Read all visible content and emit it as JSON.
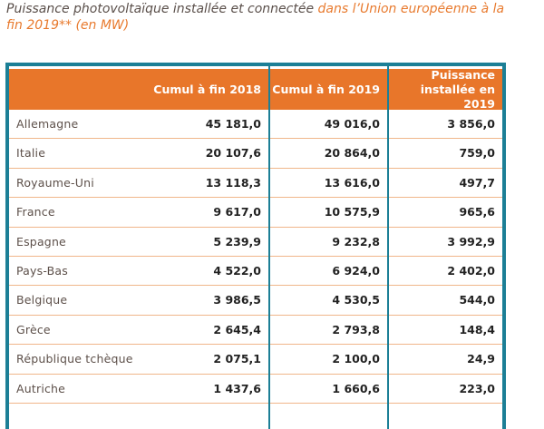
{
  "title": {
    "main": "Puissance photovoltaïque installée et connectée ",
    "accent": "dans l’Union européenne à la fin 2019** (en MW)"
  },
  "colors": {
    "border": "#1c7f96",
    "header": "#e8762a",
    "accent": "#e87a2e"
  },
  "table": {
    "headers": [
      "",
      "Cumul à fin 2018",
      "Cumul à fin 2019",
      "Puissance installée en 2019"
    ],
    "rows": [
      [
        "Allemagne",
        "45 181,0",
        "49 016,0",
        "3 856,0"
      ],
      [
        "Italie",
        "20 107,6",
        "20 864,0",
        "759,0"
      ],
      [
        "Royaume-Uni",
        "13 118,3",
        "13 616,0",
        "497,7"
      ],
      [
        "France",
        "9 617,0",
        "10 575,9",
        "965,6"
      ],
      [
        "Espagne",
        "5 239,9",
        "9 232,8",
        "3 992,9"
      ],
      [
        "Pays-Bas",
        "4 522,0",
        "6 924,0",
        "2 402,0"
      ],
      [
        "Belgique",
        "3 986,5",
        "4 530,5",
        "544,0"
      ],
      [
        "Grèce",
        "2 645,4",
        "2 793,8",
        "148,4"
      ],
      [
        "République tchèque",
        "2 075,1",
        "2 100,0",
        "24,9"
      ],
      [
        "Autriche",
        "1 437,6",
        "1 660,6",
        "223,0"
      ]
    ]
  }
}
